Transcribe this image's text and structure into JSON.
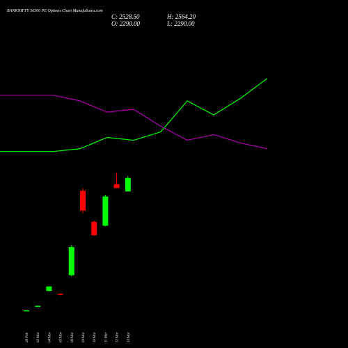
{
  "header": {
    "title": "BANKNIFTY 56300  PE Options  Chart MunafaSutra.com",
    "open_label": "O: 2290.00",
    "close_label": "C: 2528.50",
    "high_label": "H: 2564.20",
    "low_label": "L: 2290.00"
  },
  "colors": {
    "background": "#000000",
    "up": "#00ff00",
    "down": "#ff0000",
    "line_green": "#00ff00",
    "line_magenta": "#b000b0",
    "text": "#ffffff"
  },
  "chart_data": {
    "type": "candlestick",
    "categories": [
      "26 Feb",
      "02 Mar",
      "04 Mar",
      "05 Mar",
      "06 Mar",
      "09 Mar",
      "10 Mar",
      "11 Mar",
      "12 Mar",
      "13 Mar"
    ],
    "ohlc": [
      {
        "o": 170,
        "h": 180,
        "l": 165,
        "c": 175
      },
      {
        "o": 250,
        "h": 260,
        "l": 245,
        "c": 255
      },
      {
        "o": 520,
        "h": 560,
        "l": 510,
        "c": 600
      },
      {
        "o": 470,
        "h": 480,
        "l": 440,
        "c": 450
      },
      {
        "o": 800,
        "h": 1340,
        "l": 780,
        "c": 1300
      },
      {
        "o": 2300,
        "h": 2350,
        "l": 1900,
        "c": 1950
      },
      {
        "o": 1750,
        "h": 1770,
        "l": 1500,
        "c": 1510
      },
      {
        "o": 1680,
        "h": 2230,
        "l": 1670,
        "c": 2200
      },
      {
        "o": 2420,
        "h": 2620,
        "l": 2350,
        "c": 2350
      },
      {
        "o": 2290,
        "h": 2564.2,
        "l": 2290,
        "c": 2528.5
      }
    ],
    "series": [
      {
        "color": "#00ff00",
        "values": [
          3000,
          3000,
          3050,
          3250,
          3200,
          3350,
          3900,
          3650,
          3950,
          4300
        ]
      },
      {
        "color": "#b000b0",
        "values": [
          4000,
          4000,
          3900,
          3700,
          3750,
          3450,
          3200,
          3300,
          3150,
          3050
        ]
      }
    ],
    "ylim": [
      0,
      5200
    ],
    "grid": false
  }
}
